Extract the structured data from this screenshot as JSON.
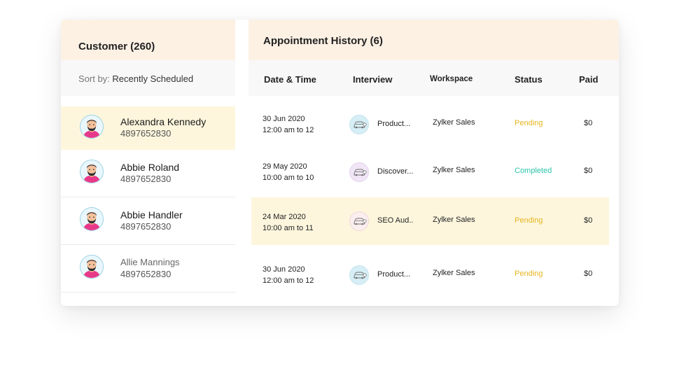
{
  "customers_panel": {
    "title": "Customer (260)",
    "sort_label": "Sort by:",
    "sort_value": "Recently Scheduled",
    "items": [
      {
        "name": "Alexandra Kennedy",
        "phone": "4897652830"
      },
      {
        "name": "Abbie Roland",
        "phone": "4897652830"
      },
      {
        "name": "Abbie Handler",
        "phone": "4897652830"
      },
      {
        "name": "Allie Mannings",
        "phone": "4897652830"
      }
    ]
  },
  "history_panel": {
    "title": "Appointment History (6)",
    "columns": {
      "date_time": "Date & Time",
      "interview": "Interview",
      "workspace": "Workspace",
      "status": "Status",
      "paid": "Paid"
    },
    "rows": [
      {
        "date": "30 Jun 2020",
        "time": "12:00 am to 12",
        "interview": "Product...",
        "workspace": "Zylker Sales",
        "status": "Pending",
        "paid": "$0"
      },
      {
        "date": "29 May 2020",
        "time": "10:00 am to 10",
        "interview": "Discover...",
        "workspace": "Zylker Sales",
        "status": "Completed",
        "paid": "$0"
      },
      {
        "date": "24 Mar 2020",
        "time": "10:00 am to 11",
        "interview": "SEO Aud..",
        "workspace": "Zylker Sales",
        "status": "Pending",
        "paid": "$0"
      },
      {
        "date": "30 Jun 2020",
        "time": "12:00 am to 12",
        "interview": "Product...",
        "workspace": "Zylker Sales",
        "status": "Pending",
        "paid": "$0"
      }
    ]
  },
  "colors": {
    "header_bg": "#fdf1e4",
    "highlight_bg": "#fdf6dd",
    "pending": "#e6b41e",
    "completed": "#2bc3a8"
  },
  "icons": {
    "avatar": "person-avatar-icon",
    "interview": "car-service-icon"
  }
}
